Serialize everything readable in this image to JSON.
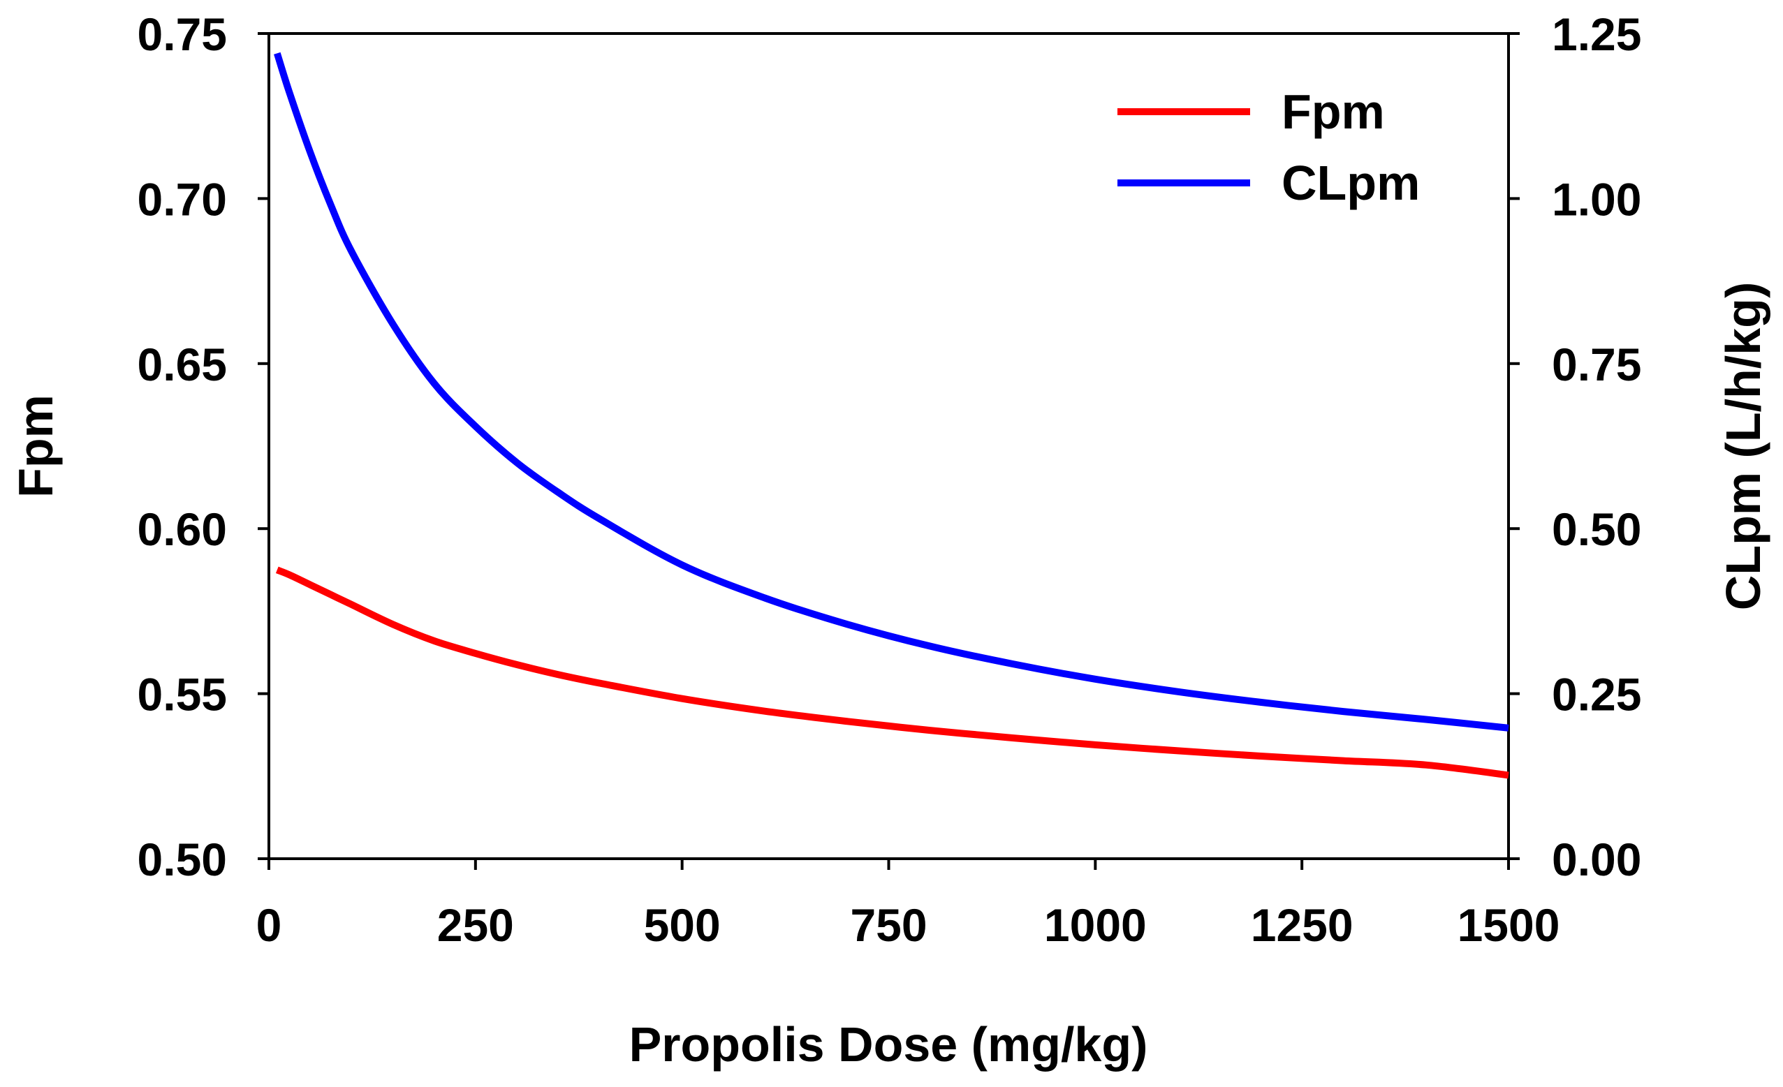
{
  "chart_data": {
    "type": "line",
    "title": "",
    "xlabel": "Propolis Dose (mg/kg)",
    "ylabel_left": "Fpm",
    "ylabel_right": "CLpm (L/h/kg)",
    "xlim": [
      0,
      1500
    ],
    "ylim_left": [
      0.5,
      0.75
    ],
    "ylim_right": [
      0.0,
      1.25
    ],
    "x_ticks": [
      "0",
      "250",
      "500",
      "750",
      "1000",
      "1250",
      "1500"
    ],
    "y_left_ticks": [
      "0.50",
      "0.55",
      "0.60",
      "0.65",
      "0.70",
      "0.75"
    ],
    "y_right_ticks": [
      "0.00",
      "0.25",
      "0.50",
      "0.75",
      "1.00",
      "1.25"
    ],
    "grid": false,
    "legend_position": "top-right",
    "series": [
      {
        "name": "Fpm",
        "axis": "left",
        "color": "#ff0000",
        "x": [
          10,
          25,
          50,
          75,
          100,
          150,
          200,
          250,
          300,
          350,
          400,
          500,
          600,
          700,
          800,
          900,
          1000,
          1100,
          1200,
          1300,
          1400,
          1500
        ],
        "values": [
          0.5875,
          0.586,
          0.583,
          0.58,
          0.577,
          0.571,
          0.566,
          0.5622,
          0.5588,
          0.5558,
          0.5532,
          0.5485,
          0.5447,
          0.5416,
          0.5389,
          0.5366,
          0.5345,
          0.5327,
          0.5311,
          0.5297,
          0.5284,
          0.5253
        ]
      },
      {
        "name": "CLpm",
        "axis": "right",
        "color": "#0000ff",
        "x": [
          10,
          25,
          50,
          75,
          100,
          150,
          200,
          250,
          300,
          350,
          400,
          500,
          600,
          700,
          800,
          900,
          1000,
          1100,
          1200,
          1300,
          1400,
          1500
        ],
        "values": [
          1.22,
          1.16,
          1.07,
          0.99,
          0.92,
          0.81,
          0.72,
          0.655,
          0.6,
          0.555,
          0.515,
          0.445,
          0.395,
          0.355,
          0.322,
          0.295,
          0.272,
          0.253,
          0.237,
          0.223,
          0.211,
          0.198
        ]
      }
    ]
  }
}
